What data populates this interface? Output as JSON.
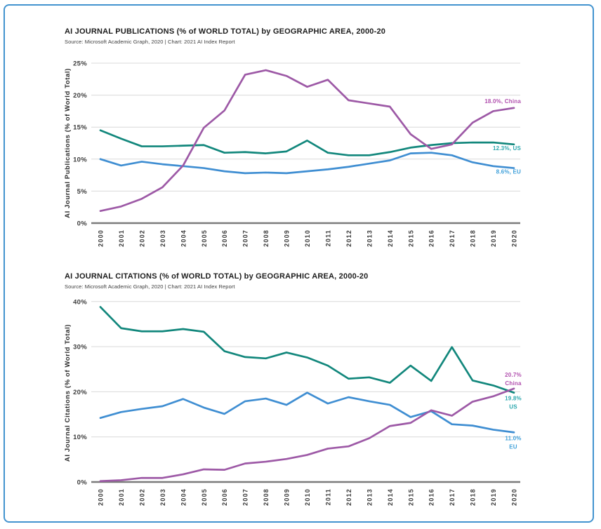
{
  "page": {
    "border_color": "#4293cf",
    "background": "#ffffff"
  },
  "chart_data": [
    {
      "type": "line",
      "title": "AI JOURNAL PUBLICATIONS (% of WORLD TOTAL) by GEOGRAPHIC AREA, 2000-20",
      "source": "Source: Microsoft Academic Graph, 2020 | Chart: 2021 AI Index Report",
      "ylabel": "AI Journal Publications (% of World Total)",
      "xlabel": "",
      "ylim": [
        0,
        25
      ],
      "ytick_step": 5,
      "grid": true,
      "legend_position": "line-end-labels",
      "x": [
        2000,
        2001,
        2002,
        2003,
        2004,
        2005,
        2006,
        2007,
        2008,
        2009,
        2010,
        2011,
        2012,
        2013,
        2014,
        2015,
        2016,
        2017,
        2018,
        2019,
        2020
      ],
      "series": [
        {
          "name": "US",
          "color": "#12877c",
          "label_color": "#2ba7ad",
          "end_label": "12.3%, US",
          "values": [
            14.5,
            13.2,
            12.0,
            12.0,
            12.1,
            12.2,
            11.0,
            11.1,
            10.9,
            11.2,
            12.9,
            11.0,
            10.6,
            10.6,
            11.1,
            11.8,
            12.2,
            12.5,
            12.6,
            12.6,
            12.3
          ]
        },
        {
          "name": "EU",
          "color": "#3f8ed2",
          "label_color": "#3fa0da",
          "end_label": "8.6%, EU",
          "values": [
            10.0,
            9.0,
            9.6,
            9.2,
            8.9,
            8.6,
            8.1,
            7.8,
            7.9,
            7.8,
            8.1,
            8.4,
            8.8,
            9.3,
            9.8,
            10.9,
            11.0,
            10.6,
            9.5,
            8.9,
            8.6
          ]
        },
        {
          "name": "China",
          "color": "#9d59a6",
          "label_color": "#b150ae",
          "end_label": "18.0%, China",
          "values": [
            1.9,
            2.6,
            3.8,
            5.6,
            9.0,
            14.9,
            17.6,
            23.2,
            23.9,
            23.0,
            21.3,
            22.4,
            19.2,
            18.7,
            18.2,
            13.9,
            11.6,
            12.3,
            15.7,
            17.5,
            18.0
          ]
        }
      ]
    },
    {
      "type": "line",
      "title": "AI JOURNAL CITATIONS (% of WORLD TOTAL) by GEOGRAPHIC AREA, 2000-20",
      "source": "Source: Microsoft Academic Graph, 2020 | Chart: 2021 AI Index Report",
      "ylabel": "AI Journal Citations (% of World Total)",
      "xlabel": "",
      "ylim": [
        0,
        40
      ],
      "ytick_step": 10,
      "grid": true,
      "legend_position": "line-end-labels",
      "x": [
        2000,
        2001,
        2002,
        2003,
        2004,
        2005,
        2006,
        2007,
        2008,
        2009,
        2010,
        2011,
        2012,
        2013,
        2014,
        2015,
        2016,
        2017,
        2018,
        2019,
        2020
      ],
      "series": [
        {
          "name": "US",
          "color": "#12877c",
          "label_color": "#2ba7ad",
          "end_label_lines": [
            "19.8%",
            "US"
          ],
          "values": [
            38.8,
            34.1,
            33.4,
            33.4,
            33.9,
            33.3,
            29.0,
            27.7,
            27.4,
            28.7,
            27.6,
            25.8,
            22.9,
            23.2,
            22.0,
            25.8,
            22.4,
            29.9,
            22.5,
            21.4,
            19.8
          ]
        },
        {
          "name": "EU",
          "color": "#3f8ed2",
          "label_color": "#3fa0da",
          "end_label_lines": [
            "11.0%",
            "EU"
          ],
          "values": [
            14.2,
            15.5,
            16.2,
            16.8,
            18.4,
            16.5,
            15.1,
            17.9,
            18.5,
            17.1,
            19.8,
            17.4,
            18.8,
            17.9,
            17.1,
            14.4,
            15.7,
            12.8,
            12.5,
            11.6,
            11.0
          ]
        },
        {
          "name": "China",
          "color": "#9d59a6",
          "label_color": "#b150ae",
          "end_label_lines": [
            "20.7%",
            "China"
          ],
          "values": [
            0.2,
            0.4,
            0.9,
            0.9,
            1.7,
            2.8,
            2.7,
            4.1,
            4.5,
            5.1,
            6.0,
            7.4,
            7.9,
            9.7,
            12.4,
            13.1,
            15.9,
            14.7,
            17.8,
            19.0,
            20.7
          ]
        }
      ]
    }
  ]
}
